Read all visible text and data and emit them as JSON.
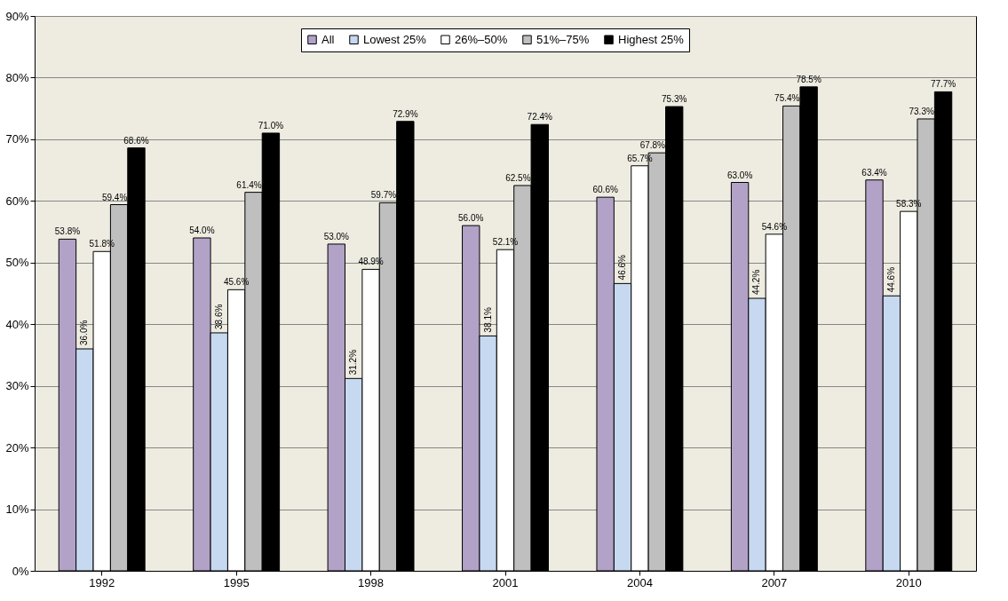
{
  "chart_data": {
    "type": "bar",
    "categories": [
      "1992",
      "1995",
      "1998",
      "2001",
      "2004",
      "2007",
      "2010"
    ],
    "series": [
      {
        "name": "All",
        "color": "#b3a2c7",
        "values": [
          53.8,
          54.0,
          53.0,
          56.0,
          60.6,
          63.0,
          63.4
        ],
        "value_labels": [
          "53.8%",
          "54.0%",
          "53.0%",
          "56.0%",
          "60.6%",
          "63.0%",
          "63.4%"
        ]
      },
      {
        "name": "Lowest 25%",
        "color": "#c6d9f1",
        "values": [
          36.0,
          38.6,
          31.2,
          38.1,
          46.6,
          44.2,
          44.6
        ],
        "value_labels": [
          "36.0%",
          "38.6%",
          "31.2%",
          "38.1%",
          "46.6%",
          "44.2%",
          "44.6%"
        ]
      },
      {
        "name": "26%–50%",
        "color": "#ffffff",
        "values": [
          51.8,
          45.6,
          48.9,
          52.1,
          65.7,
          54.6,
          58.3
        ],
        "value_labels": [
          "51.8%",
          "45.6%",
          "48.9%",
          "52.1%",
          "65.7%",
          "54.6%",
          "58.3%"
        ]
      },
      {
        "name": "51%–75%",
        "color": "#bfbfbf",
        "values": [
          59.4,
          61.4,
          59.7,
          62.5,
          67.8,
          75.4,
          73.3
        ],
        "value_labels": [
          "59.4%",
          "61.4%",
          "59.7%",
          "62.5%",
          "67.8%",
          "75.4%",
          "73.3%"
        ]
      },
      {
        "name": "Highest 25%",
        "color": "#000000",
        "values": [
          68.6,
          71.0,
          72.9,
          72.4,
          75.3,
          78.5,
          77.7
        ],
        "value_labels": [
          "68.6%",
          "71.0%",
          "72.9%",
          "72.4%",
          "75.3%",
          "78.5%",
          "77.7%"
        ]
      }
    ],
    "ylim": [
      0,
      90
    ],
    "yticks": [
      {
        "value": 0,
        "label": "0%"
      },
      {
        "value": 10,
        "label": "10%"
      },
      {
        "value": 20,
        "label": "20%"
      },
      {
        "value": 30,
        "label": "30%"
      },
      {
        "value": 40,
        "label": "40%"
      },
      {
        "value": 50,
        "label": "50%"
      },
      {
        "value": 60,
        "label": "60%"
      },
      {
        "value": 70,
        "label": "70%"
      },
      {
        "value": 80,
        "label": "80%"
      },
      {
        "value": 90,
        "label": "90%"
      }
    ],
    "grid": "y",
    "legend": "top"
  }
}
